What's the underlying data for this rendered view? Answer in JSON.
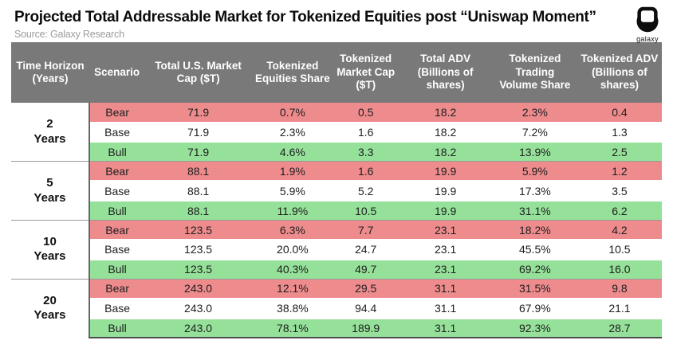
{
  "header": {
    "title": "Projected Total Addressable Market for Tokenized Equities post “Uniswap Moment”",
    "source": "Source: Galaxy Research",
    "brand": "galaxy"
  },
  "colors": {
    "header_bg": "#797979",
    "bear_row": "#ee8b8d",
    "base_row": "#ffffff",
    "bull_row": "#95e19a",
    "title_text": "#0b0b0b",
    "source_text": "#9c9c9c",
    "header_text": "#ffffff"
  },
  "chart_data": {
    "type": "table",
    "title": "Projected Total Addressable Market for Tokenized Equities post “Uniswap Moment”",
    "source": "Source: Galaxy Research",
    "columns": [
      "Time Horizon (Years)",
      "Scenario",
      "Total U.S. Market Cap ($T)",
      "Tokenized Equities Share",
      "Tokenized Market Cap ($T)",
      "Total ADV (Billions of shares)",
      "Tokenized Trading Volume Share",
      "Tokenized ADV (Billions of shares)"
    ],
    "groups": [
      {
        "time_horizon": "2",
        "unit": "Years",
        "rows": [
          {
            "scenario": "Bear",
            "values": [
              "71.9",
              "0.7%",
              "0.5",
              "18.2",
              "2.3%",
              "0.4"
            ]
          },
          {
            "scenario": "Base",
            "values": [
              "71.9",
              "2.3%",
              "1.6",
              "18.2",
              "7.2%",
              "1.3"
            ]
          },
          {
            "scenario": "Bull",
            "values": [
              "71.9",
              "4.6%",
              "3.3",
              "18.2",
              "13.9%",
              "2.5"
            ]
          }
        ]
      },
      {
        "time_horizon": "5",
        "unit": "Years",
        "rows": [
          {
            "scenario": "Bear",
            "values": [
              "88.1",
              "1.9%",
              "1.6",
              "19.9",
              "5.9%",
              "1.2"
            ]
          },
          {
            "scenario": "Base",
            "values": [
              "88.1",
              "5.9%",
              "5.2",
              "19.9",
              "17.3%",
              "3.5"
            ]
          },
          {
            "scenario": "Bull",
            "values": [
              "88.1",
              "11.9%",
              "10.5",
              "19.9",
              "31.1%",
              "6.2"
            ]
          }
        ]
      },
      {
        "time_horizon": "10",
        "unit": "Years",
        "rows": [
          {
            "scenario": "Bear",
            "values": [
              "123.5",
              "6.3%",
              "7.7",
              "23.1",
              "18.2%",
              "4.2"
            ]
          },
          {
            "scenario": "Base",
            "values": [
              "123.5",
              "20.0%",
              "24.7",
              "23.1",
              "45.5%",
              "10.5"
            ]
          },
          {
            "scenario": "Bull",
            "values": [
              "123.5",
              "40.3%",
              "49.7",
              "23.1",
              "69.2%",
              "16.0"
            ]
          }
        ]
      },
      {
        "time_horizon": "20",
        "unit": "Years",
        "rows": [
          {
            "scenario": "Bear",
            "values": [
              "243.0",
              "12.1%",
              "29.5",
              "31.1",
              "31.5%",
              "9.8"
            ]
          },
          {
            "scenario": "Base",
            "values": [
              "243.0",
              "38.8%",
              "94.4",
              "31.1",
              "67.9%",
              "21.1"
            ]
          },
          {
            "scenario": "Bull",
            "values": [
              "243.0",
              "78.1%",
              "189.9",
              "31.1",
              "92.3%",
              "28.7"
            ]
          }
        ]
      }
    ],
    "row_colors": {
      "Bear": "#ee8b8d",
      "Base": "#ffffff",
      "Bull": "#95e19a"
    },
    "legend_position": "none",
    "grid": "row-bands"
  }
}
